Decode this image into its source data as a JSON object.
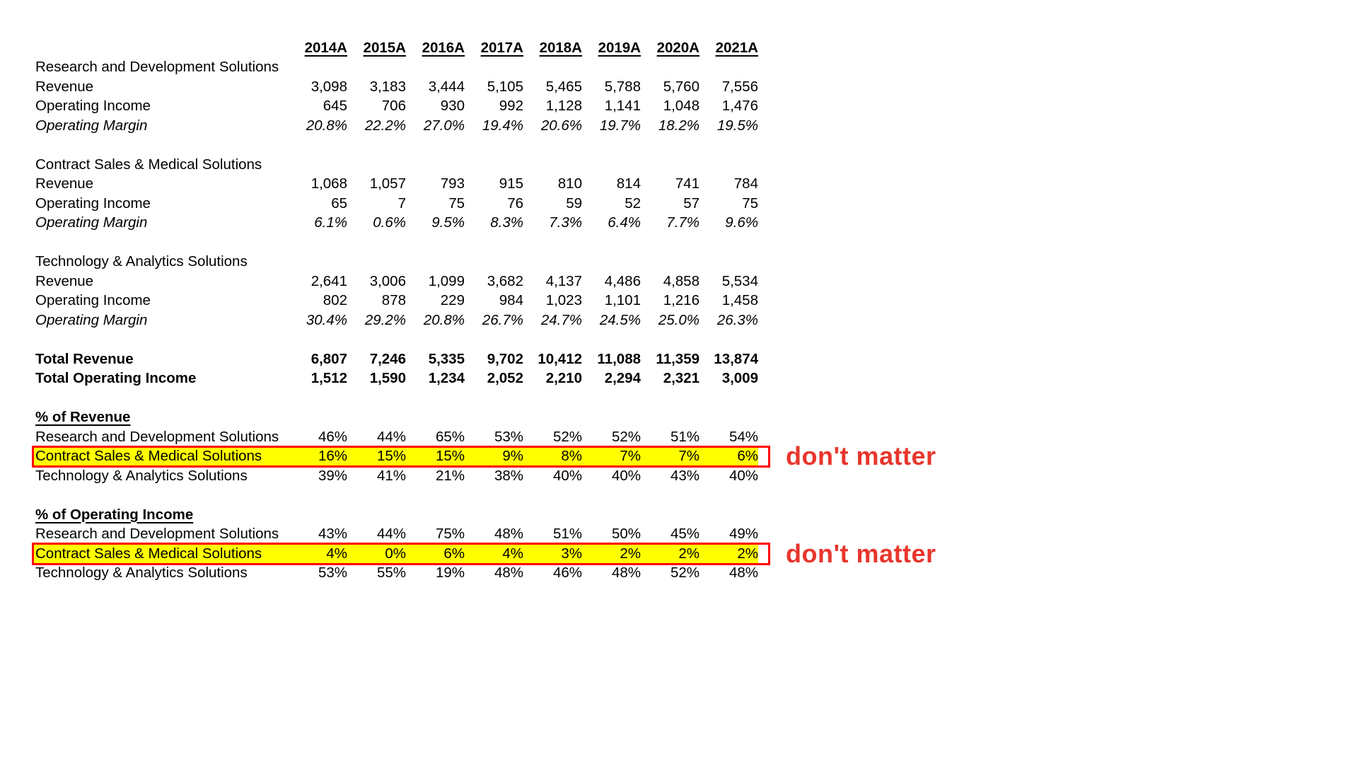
{
  "colors": {
    "highlight_fill": "#ffff00",
    "highlight_border": "#ff0000",
    "annotation_red": "#e8362d",
    "text": "#000000",
    "background": "#ffffff"
  },
  "table": {
    "columns": [
      "2014A",
      "2015A",
      "2016A",
      "2017A",
      "2018A",
      "2019A",
      "2020A",
      "2021A"
    ],
    "segments": [
      {
        "name": "Research and Development Solutions",
        "rows": [
          {
            "label": "Revenue",
            "style": "normal",
            "values": [
              "3,098",
              "3,183",
              "3,444",
              "5,105",
              "5,465",
              "5,788",
              "5,760",
              "7,556"
            ]
          },
          {
            "label": "Operating Income",
            "style": "normal",
            "values": [
              "645",
              "706",
              "930",
              "992",
              "1,128",
              "1,141",
              "1,048",
              "1,476"
            ]
          },
          {
            "label": "Operating Margin",
            "style": "italic",
            "values": [
              "20.8%",
              "22.2%",
              "27.0%",
              "19.4%",
              "20.6%",
              "19.7%",
              "18.2%",
              "19.5%"
            ]
          }
        ]
      },
      {
        "name": "Contract Sales & Medical Solutions",
        "rows": [
          {
            "label": "Revenue",
            "style": "normal",
            "values": [
              "1,068",
              "1,057",
              "793",
              "915",
              "810",
              "814",
              "741",
              "784"
            ]
          },
          {
            "label": "Operating Income",
            "style": "normal",
            "values": [
              "65",
              "7",
              "75",
              "76",
              "59",
              "52",
              "57",
              "75"
            ]
          },
          {
            "label": "Operating Margin",
            "style": "italic",
            "values": [
              "6.1%",
              "0.6%",
              "9.5%",
              "8.3%",
              "7.3%",
              "6.4%",
              "7.7%",
              "9.6%"
            ]
          }
        ]
      },
      {
        "name": "Technology & Analytics Solutions",
        "rows": [
          {
            "label": "Revenue",
            "style": "normal",
            "values": [
              "2,641",
              "3,006",
              "1,099",
              "3,682",
              "4,137",
              "4,486",
              "4,858",
              "5,534"
            ]
          },
          {
            "label": "Operating Income",
            "style": "normal",
            "values": [
              "802",
              "878",
              "229",
              "984",
              "1,023",
              "1,101",
              "1,216",
              "1,458"
            ]
          },
          {
            "label": "Operating Margin",
            "style": "italic",
            "values": [
              "30.4%",
              "29.2%",
              "20.8%",
              "26.7%",
              "24.7%",
              "24.5%",
              "25.0%",
              "26.3%"
            ]
          }
        ]
      }
    ],
    "totals": [
      {
        "label": "Total Revenue",
        "values": [
          "6,807",
          "7,246",
          "5,335",
          "9,702",
          "10,412",
          "11,088",
          "11,359",
          "13,874"
        ]
      },
      {
        "label": "Total Operating Income",
        "values": [
          "1,512",
          "1,590",
          "1,234",
          "2,052",
          "2,210",
          "2,294",
          "2,321",
          "3,009"
        ]
      }
    ],
    "percent_sections": [
      {
        "heading": "% of Revenue",
        "rows": [
          {
            "label": "Research and Development Solutions",
            "highlight": false,
            "values": [
              "46%",
              "44%",
              "65%",
              "53%",
              "52%",
              "52%",
              "51%",
              "54%"
            ]
          },
          {
            "label": "Contract Sales & Medical Solutions",
            "highlight": true,
            "annotation": "don't matter",
            "values": [
              "16%",
              "15%",
              "15%",
              "9%",
              "8%",
              "7%",
              "7%",
              "6%"
            ]
          },
          {
            "label": "Technology & Analytics Solutions",
            "highlight": false,
            "values": [
              "39%",
              "41%",
              "21%",
              "38%",
              "40%",
              "40%",
              "43%",
              "40%"
            ]
          }
        ]
      },
      {
        "heading": "% of Operating Income",
        "rows": [
          {
            "label": "Research and Development Solutions",
            "highlight": false,
            "values": [
              "43%",
              "44%",
              "75%",
              "48%",
              "51%",
              "50%",
              "45%",
              "49%"
            ]
          },
          {
            "label": "Contract Sales & Medical Solutions",
            "highlight": true,
            "annotation": "don't matter",
            "values": [
              "4%",
              "0%",
              "6%",
              "4%",
              "3%",
              "2%",
              "2%",
              "2%"
            ]
          },
          {
            "label": "Technology & Analytics Solutions",
            "highlight": false,
            "values": [
              "53%",
              "55%",
              "19%",
              "48%",
              "46%",
              "48%",
              "52%",
              "48%"
            ]
          }
        ]
      }
    ]
  }
}
